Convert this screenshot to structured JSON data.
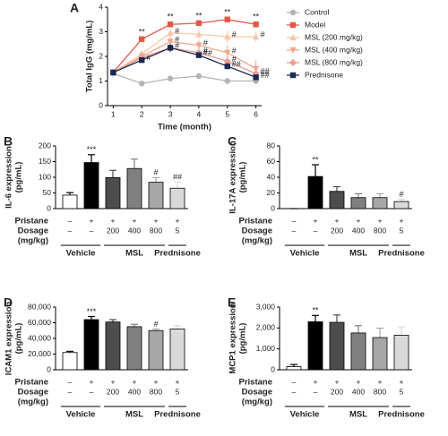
{
  "chart_data": [
    {
      "type": "line",
      "panel": "A",
      "x_label": "Time (month)",
      "y_label": "Total IgG (mg/mL)",
      "x": [
        1,
        2,
        3,
        4,
        5,
        6
      ],
      "xlim": [
        0.8,
        6.2
      ],
      "xticks": [
        1,
        2,
        3,
        4,
        5,
        6
      ],
      "ylim": [
        0,
        4
      ],
      "yticks": [
        0,
        1,
        2,
        3,
        4
      ],
      "legend": "right",
      "series": [
        {
          "name": "Control",
          "color": "#b3b3b3",
          "marker": "circle",
          "values": [
            1.3,
            0.9,
            1.1,
            1.2,
            1.0,
            1.0
          ],
          "errors": [
            0.05,
            0.08,
            0.08,
            0.08,
            0.08,
            0.08
          ]
        },
        {
          "name": "Model",
          "color": "#e0584a",
          "marker": "square",
          "values": [
            1.35,
            2.7,
            3.3,
            3.35,
            3.5,
            3.3
          ],
          "errors": [
            0.05,
            0.1,
            0.12,
            0.1,
            0.1,
            0.12
          ],
          "annotations": [
            null,
            "**",
            "**",
            "**",
            "**",
            "**"
          ]
        },
        {
          "name": "MSL (200 mg/kg)",
          "color": "#f6c6a6",
          "marker": "triangle",
          "values": [
            1.35,
            2.1,
            2.95,
            2.9,
            2.8,
            2.8
          ],
          "errors": [
            0.05,
            0.15,
            0.2,
            0.2,
            0.25,
            0.2
          ],
          "annotations": [
            null,
            null,
            "#",
            null,
            "#",
            "#"
          ]
        },
        {
          "name": "MSL (400 mg/kg)",
          "color": "#f2a98c",
          "marker": "triangle-down",
          "values": [
            1.35,
            2.0,
            2.6,
            2.45,
            2.15,
            1.5
          ],
          "errors": [
            0.05,
            0.2,
            0.2,
            0.2,
            0.3,
            0.35
          ],
          "annotations": [
            null,
            null,
            "#",
            "#",
            "#",
            null
          ]
        },
        {
          "name": "MSL (800 mg/kg)",
          "color": "#ea9b94",
          "marker": "diamond",
          "values": [
            1.35,
            1.95,
            2.35,
            2.15,
            1.8,
            1.3
          ],
          "errors": [
            0.05,
            0.15,
            0.2,
            0.15,
            0.2,
            0.2
          ],
          "annotations": [
            null,
            null,
            null,
            "#",
            "#",
            "##"
          ]
        },
        {
          "name": "Prednisone",
          "color": "#1e2a52",
          "marker": "square",
          "values": [
            1.35,
            1.85,
            2.35,
            2.05,
            1.6,
            1.15
          ],
          "errors": [
            0.05,
            0.1,
            0.15,
            0.12,
            0.12,
            0.1
          ],
          "annotations": [
            null,
            "#",
            "#",
            "##",
            "##",
            "##"
          ]
        }
      ]
    },
    {
      "type": "bar",
      "panel": "B",
      "y_label": [
        "IL-6 expression",
        "(pg/mL)"
      ],
      "ylim": [
        0,
        200
      ],
      "yticks": [
        0,
        50,
        100,
        150,
        200
      ],
      "colors": [
        "#ffffff",
        "#000000",
        "#4d4d4d",
        "#808080",
        "#a6a6a6",
        "#d9d9d9"
      ],
      "values": [
        43,
        147,
        99,
        128,
        84,
        65
      ],
      "errors": [
        8,
        25,
        23,
        30,
        15,
        20
      ],
      "annotations": [
        null,
        "***",
        null,
        null,
        "#",
        "##"
      ],
      "rows": [
        {
          "label": "Pristane",
          "cells": [
            "–",
            "+",
            "+",
            "+",
            "+",
            "+"
          ]
        },
        {
          "label": "Dosage",
          "sublabel": "(mg/kg)",
          "cells": [
            "–",
            "–",
            "200",
            "400",
            "800",
            "5"
          ]
        }
      ],
      "groups": [
        {
          "label": "Vehicle",
          "size": 2
        },
        {
          "label": "MSL",
          "size": 3
        },
        {
          "label": "Prednisone",
          "size": 1
        }
      ]
    },
    {
      "type": "bar",
      "panel": "C",
      "y_label": [
        "IL-17A expression",
        "(pg/mL)"
      ],
      "ylim": [
        0,
        80
      ],
      "yticks": [
        0,
        20,
        40,
        60,
        80
      ],
      "colors": [
        "#ffffff",
        "#000000",
        "#4d4d4d",
        "#808080",
        "#a6a6a6",
        "#d9d9d9"
      ],
      "values": [
        0,
        41,
        22,
        14,
        14,
        9
      ],
      "errors": [
        0,
        15,
        6,
        5,
        5,
        3
      ],
      "annotations": [
        null,
        "**",
        null,
        null,
        null,
        "#"
      ],
      "rows": [
        {
          "label": "Pristane",
          "cells": [
            "–",
            "+",
            "+",
            "+",
            "+",
            "+"
          ]
        },
        {
          "label": "Dosage",
          "sublabel": "(mg/kg)",
          "cells": [
            "–",
            "–",
            "200",
            "400",
            "800",
            "5"
          ]
        }
      ],
      "groups": [
        {
          "label": "Vehicle",
          "size": 2
        },
        {
          "label": "MSL",
          "size": 3
        },
        {
          "label": "Prednisone",
          "size": 1
        }
      ]
    },
    {
      "type": "bar",
      "panel": "D",
      "y_label": [
        "ICAM1 expression",
        "(pg/mL)"
      ],
      "ylim": [
        0,
        80000
      ],
      "yticks": [
        0,
        {
          "value": 20000,
          "label": "20,000"
        },
        {
          "value": 40000,
          "label": "40,000"
        },
        {
          "value": 60000,
          "label": "60,000"
        },
        {
          "value": 80000,
          "label": "80,000"
        }
      ],
      "colors": [
        "#ffffff",
        "#000000",
        "#4d4d4d",
        "#808080",
        "#a6a6a6",
        "#d9d9d9"
      ],
      "values": [
        22000,
        64000,
        61000,
        55000,
        50000,
        52000
      ],
      "errors": [
        1500,
        4000,
        3000,
        3000,
        2000,
        4000
      ],
      "annotations": [
        null,
        "***",
        null,
        null,
        "#",
        null
      ],
      "rows": [
        {
          "label": "Pristane",
          "cells": [
            "–",
            "+",
            "+",
            "+",
            "+",
            "+"
          ]
        },
        {
          "label": "Dosage",
          "sublabel": "(mg/kg)",
          "cells": [
            "–",
            "–",
            "200",
            "400",
            "800",
            "5"
          ]
        }
      ],
      "groups": [
        {
          "label": "Vehicle",
          "size": 2
        },
        {
          "label": "MSL",
          "size": 3
        },
        {
          "label": "Prednisone",
          "size": 1
        }
      ]
    },
    {
      "type": "bar",
      "panel": "E",
      "y_label": [
        "MCP1 expression",
        "(pg/mL)"
      ],
      "ylim": [
        0,
        3000
      ],
      "yticks": [
        0,
        {
          "value": 1000,
          "label": "1,000"
        },
        {
          "value": 2000,
          "label": "2,000"
        },
        {
          "value": 3000,
          "label": "3,000"
        }
      ],
      "colors": [
        "#ffffff",
        "#000000",
        "#4d4d4d",
        "#808080",
        "#a6a6a6",
        "#d9d9d9"
      ],
      "values": [
        150,
        2300,
        2270,
        1760,
        1540,
        1650
      ],
      "errors": [
        100,
        300,
        350,
        350,
        450,
        400
      ],
      "annotations": [
        null,
        "**",
        null,
        null,
        null,
        null
      ],
      "rows": [
        {
          "label": "Pristane",
          "cells": [
            "–",
            "+",
            "+",
            "+",
            "+",
            "+"
          ]
        },
        {
          "label": "Dosage",
          "sublabel": "(mg/kg)",
          "cells": [
            "–",
            "–",
            "200",
            "400",
            "800",
            "5"
          ]
        }
      ],
      "groups": [
        {
          "label": "Vehicle",
          "size": 2
        },
        {
          "label": "MSL",
          "size": 3
        },
        {
          "label": "Prednisone",
          "size": 1
        }
      ]
    }
  ]
}
